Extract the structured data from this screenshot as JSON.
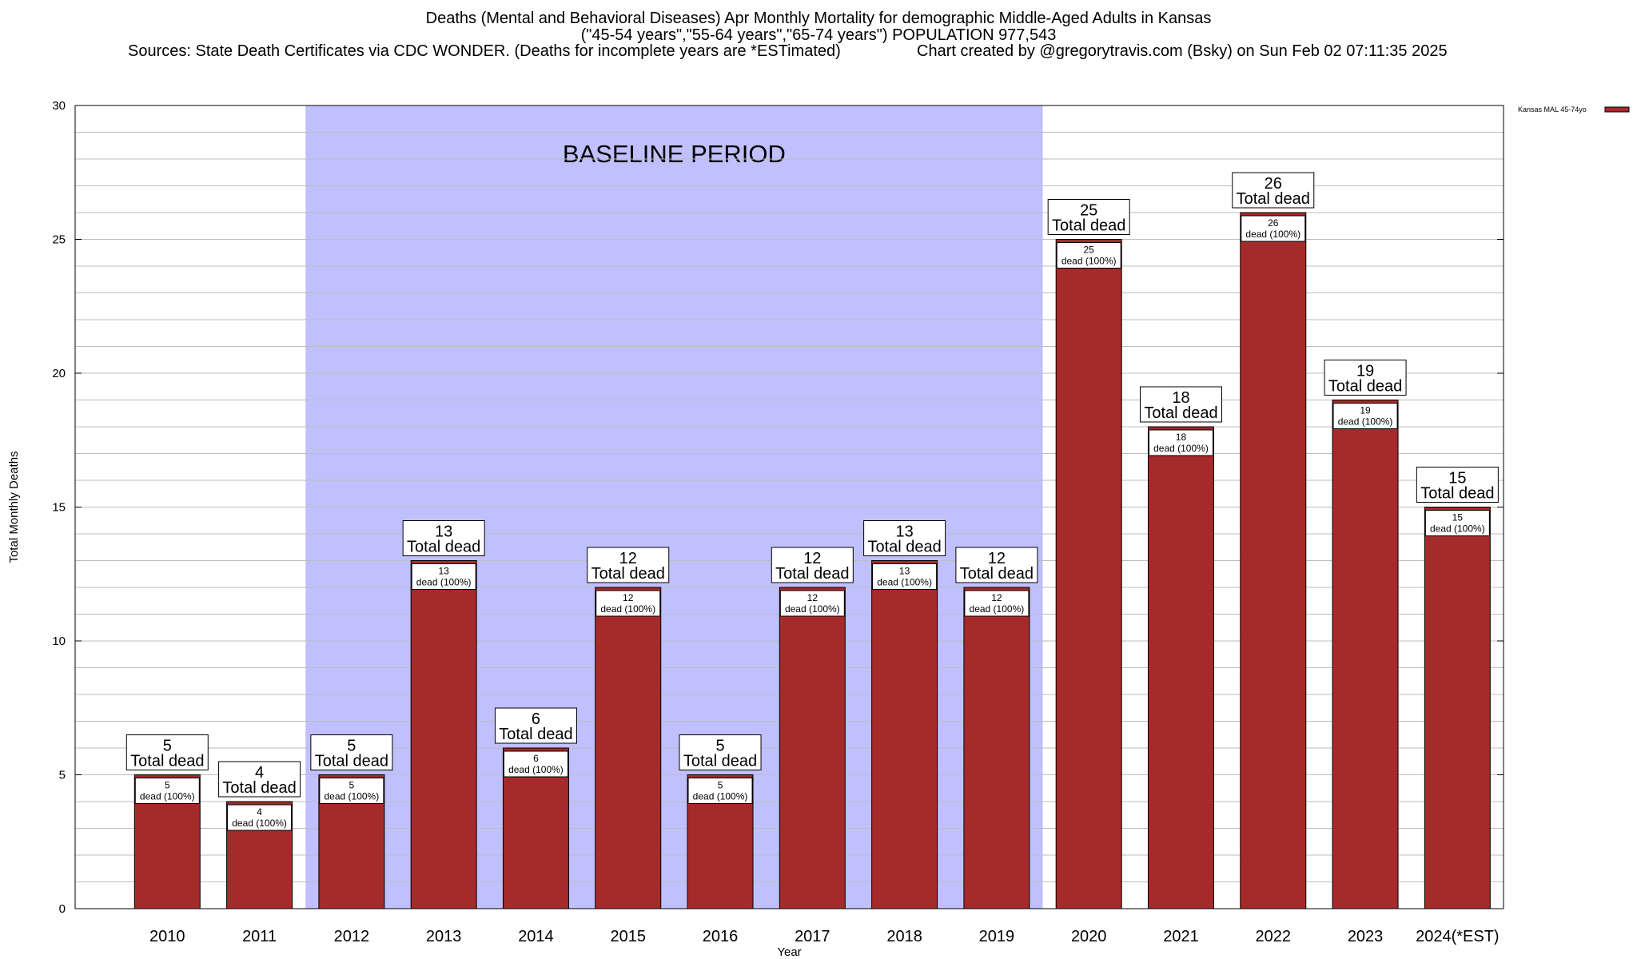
{
  "header": {
    "title_line1": "Deaths (Mental and Behavioral Diseases) Apr Monthly Mortality for demographic Middle-Aged Adults in Kansas",
    "title_line2": "(\"45-54 years\",\"55-64 years\",\"65-74 years\") POPULATION 977,543",
    "sources": "Sources: State Death Certificates via CDC WONDER. (Deaths for incomplete years are *ESTimated)",
    "credit": "Chart created by @gregorytravis.com (Bsky) on Sun Feb 02 07:11:35 2025"
  },
  "chart_data": {
    "type": "bar",
    "xlabel": "Year",
    "ylabel": "Total Monthly Deaths",
    "ylim": [
      0,
      30
    ],
    "yticks": [
      0,
      5,
      10,
      15,
      20,
      25,
      30
    ],
    "grid": true,
    "legend": {
      "position": "top-right",
      "label": "Kansas MAL 45-74yo"
    },
    "baseline": {
      "label": "BASELINE PERIOD",
      "from": "2012",
      "to": "2019",
      "color": "#c0c0ff"
    },
    "bar_color": "#a52a2a",
    "categories": [
      "2010",
      "2011",
      "2012",
      "2013",
      "2014",
      "2015",
      "2016",
      "2017",
      "2018",
      "2019",
      "2020",
      "2021",
      "2022",
      "2023",
      "2024(*EST)"
    ],
    "series": [
      {
        "name": "Kansas MAL 45-74yo",
        "values": [
          5,
          4,
          5,
          13,
          6,
          12,
          5,
          12,
          13,
          12,
          25,
          18,
          26,
          19,
          15
        ]
      }
    ],
    "top_label_suffix": "Total dead",
    "inner_label_suffix": "dead (100%)"
  }
}
